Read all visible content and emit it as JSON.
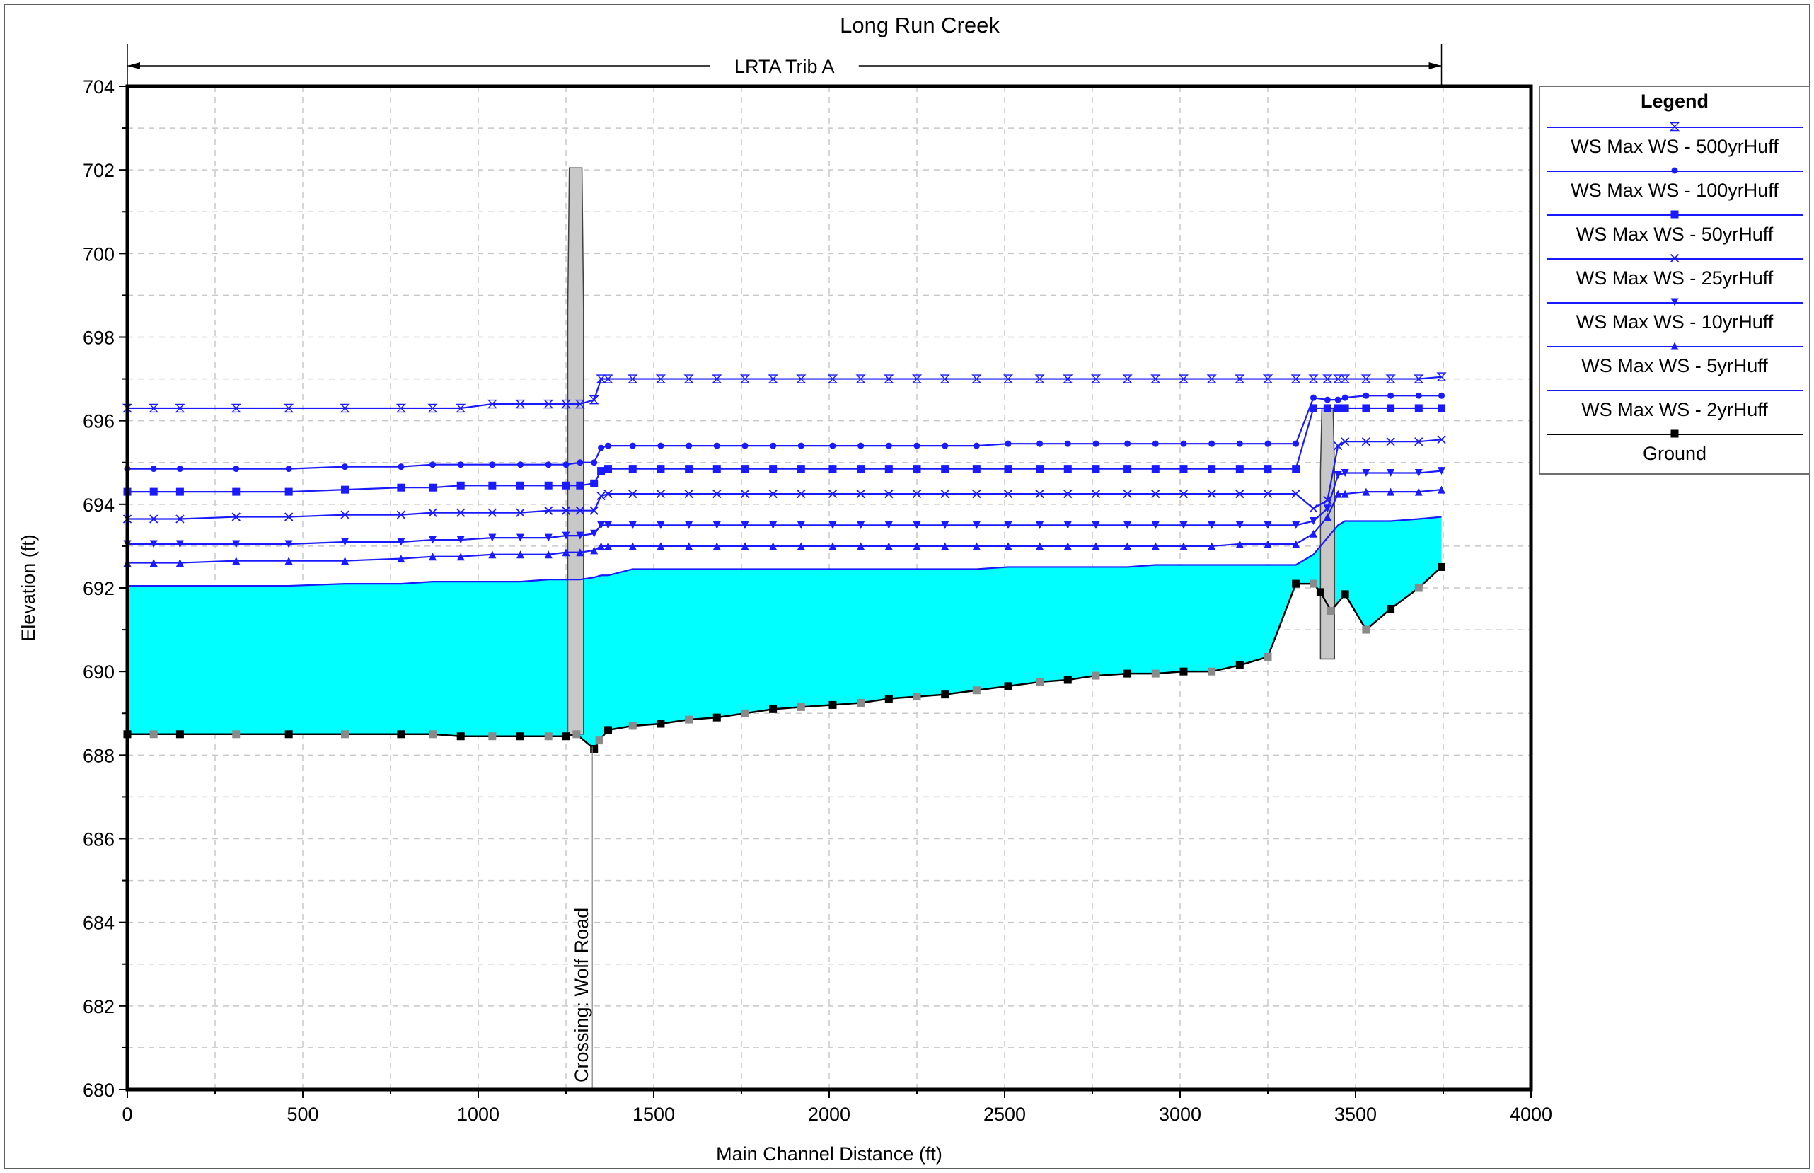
{
  "chart_data": {
    "type": "line",
    "title": "Long Run Creek",
    "reach_label": "LRTA Trib A",
    "xlabel": "Main Channel Distance (ft)",
    "ylabel": "Elevation (ft)",
    "xlim": [
      0,
      4000
    ],
    "ylim": [
      680,
      704
    ],
    "x_ticks": [
      "0",
      "500",
      "1000",
      "1500",
      "2000",
      "2500",
      "3000",
      "3500",
      "4000"
    ],
    "y_ticks": [
      "680",
      "682",
      "684",
      "686",
      "688",
      "690",
      "692",
      "694",
      "696",
      "698",
      "700",
      "702",
      "704"
    ],
    "grid": true,
    "legend_position": "right",
    "legend_title": "Legend",
    "annotation": "Crossing: Wolf Road",
    "annotation_x": 1325,
    "reach_start_x": 0,
    "reach_end_x": 3745,
    "colors": {
      "ws": "#1a1aff",
      "ground": "#000000",
      "fill": "#00ffff",
      "structure": "#c8c8c8"
    },
    "series": [
      {
        "name": "WS Max WS - 500yrHuff",
        "marker": "hourglass",
        "x": [
          0,
          75,
          150,
          310,
          460,
          620,
          780,
          870,
          950,
          1040,
          1120,
          1200,
          1250,
          1290,
          1330,
          1350,
          1370,
          1440,
          1520,
          1600,
          1680,
          1760,
          1840,
          1920,
          2010,
          2090,
          2170,
          2250,
          2330,
          2420,
          2510,
          2600,
          2680,
          2760,
          2850,
          2930,
          3010,
          3090,
          3170,
          3250,
          3330,
          3380,
          3420,
          3450,
          3470,
          3530,
          3600,
          3680,
          3745
        ],
        "values": [
          696.3,
          696.3,
          696.3,
          696.3,
          696.3,
          696.3,
          696.3,
          696.3,
          696.3,
          696.4,
          696.4,
          696.4,
          696.4,
          696.4,
          696.5,
          697.0,
          697.0,
          697.0,
          697.0,
          697.0,
          697.0,
          697.0,
          697.0,
          697.0,
          697.0,
          697.0,
          697.0,
          697.0,
          697.0,
          697.0,
          697.0,
          697.0,
          697.0,
          697.0,
          697.0,
          697.0,
          697.0,
          697.0,
          697.0,
          697.0,
          697.0,
          697.0,
          697.0,
          697.0,
          697.0,
          697.0,
          697.0,
          697.0,
          697.05
        ]
      },
      {
        "name": "WS Max WS - 100yrHuff",
        "marker": "circle",
        "x": [
          0,
          75,
          150,
          310,
          460,
          620,
          780,
          870,
          950,
          1040,
          1120,
          1200,
          1250,
          1290,
          1330,
          1350,
          1370,
          1440,
          1520,
          1600,
          1680,
          1760,
          1840,
          1920,
          2010,
          2090,
          2170,
          2250,
          2330,
          2420,
          2510,
          2600,
          2680,
          2760,
          2850,
          2930,
          3010,
          3090,
          3170,
          3250,
          3330,
          3380,
          3420,
          3450,
          3470,
          3530,
          3600,
          3680,
          3745
        ],
        "values": [
          694.85,
          694.85,
          694.85,
          694.85,
          694.85,
          694.9,
          694.9,
          694.95,
          694.95,
          694.95,
          694.95,
          694.95,
          694.95,
          695.0,
          695.0,
          695.35,
          695.4,
          695.4,
          695.4,
          695.4,
          695.4,
          695.4,
          695.4,
          695.4,
          695.4,
          695.4,
          695.4,
          695.4,
          695.4,
          695.4,
          695.45,
          695.45,
          695.45,
          695.45,
          695.45,
          695.45,
          695.45,
          695.45,
          695.45,
          695.45,
          695.45,
          696.55,
          696.5,
          696.5,
          696.55,
          696.6,
          696.6,
          696.6,
          696.6
        ]
      },
      {
        "name": "WS Max WS - 50yrHuff",
        "marker": "square",
        "x": [
          0,
          75,
          150,
          310,
          460,
          620,
          780,
          870,
          950,
          1040,
          1120,
          1200,
          1250,
          1290,
          1330,
          1350,
          1370,
          1440,
          1520,
          1600,
          1680,
          1760,
          1840,
          1920,
          2010,
          2090,
          2170,
          2250,
          2330,
          2420,
          2510,
          2600,
          2680,
          2760,
          2850,
          2930,
          3010,
          3090,
          3170,
          3250,
          3330,
          3380,
          3420,
          3450,
          3470,
          3530,
          3600,
          3680,
          3745
        ],
        "values": [
          694.3,
          694.3,
          694.3,
          694.3,
          694.3,
          694.35,
          694.4,
          694.4,
          694.45,
          694.45,
          694.45,
          694.45,
          694.45,
          694.45,
          694.5,
          694.8,
          694.85,
          694.85,
          694.85,
          694.85,
          694.85,
          694.85,
          694.85,
          694.85,
          694.85,
          694.85,
          694.85,
          694.85,
          694.85,
          694.85,
          694.85,
          694.85,
          694.85,
          694.85,
          694.85,
          694.85,
          694.85,
          694.85,
          694.85,
          694.85,
          694.85,
          696.3,
          696.3,
          696.3,
          696.3,
          696.3,
          696.3,
          696.3,
          696.3
        ]
      },
      {
        "name": "WS Max WS - 25yrHuff",
        "marker": "x",
        "x": [
          0,
          75,
          150,
          310,
          460,
          620,
          780,
          870,
          950,
          1040,
          1120,
          1200,
          1250,
          1290,
          1330,
          1350,
          1370,
          1440,
          1520,
          1600,
          1680,
          1760,
          1840,
          1920,
          2010,
          2090,
          2170,
          2250,
          2330,
          2420,
          2510,
          2600,
          2680,
          2760,
          2850,
          2930,
          3010,
          3090,
          3170,
          3250,
          3330,
          3380,
          3420,
          3450,
          3470,
          3530,
          3600,
          3680,
          3745
        ],
        "values": [
          693.65,
          693.65,
          693.65,
          693.7,
          693.7,
          693.75,
          693.75,
          693.8,
          693.8,
          693.8,
          693.8,
          693.85,
          693.85,
          693.85,
          693.85,
          694.2,
          694.25,
          694.25,
          694.25,
          694.25,
          694.25,
          694.25,
          694.25,
          694.25,
          694.25,
          694.25,
          694.25,
          694.25,
          694.25,
          694.25,
          694.25,
          694.25,
          694.25,
          694.25,
          694.25,
          694.25,
          694.25,
          694.25,
          694.25,
          694.25,
          694.25,
          693.9,
          694.1,
          695.4,
          695.5,
          695.5,
          695.5,
          695.5,
          695.55
        ]
      },
      {
        "name": "WS Max WS - 10yrHuff",
        "marker": "triangle-down",
        "x": [
          0,
          75,
          150,
          310,
          460,
          620,
          780,
          870,
          950,
          1040,
          1120,
          1200,
          1250,
          1290,
          1330,
          1350,
          1370,
          1440,
          1520,
          1600,
          1680,
          1760,
          1840,
          1920,
          2010,
          2090,
          2170,
          2250,
          2330,
          2420,
          2510,
          2600,
          2680,
          2760,
          2850,
          2930,
          3010,
          3090,
          3170,
          3250,
          3330,
          3380,
          3420,
          3450,
          3470,
          3530,
          3600,
          3680,
          3745
        ],
        "values": [
          693.05,
          693.05,
          693.05,
          693.05,
          693.05,
          693.1,
          693.1,
          693.15,
          693.15,
          693.2,
          693.2,
          693.2,
          693.25,
          693.25,
          693.3,
          693.5,
          693.5,
          693.5,
          693.5,
          693.5,
          693.5,
          693.5,
          693.5,
          693.5,
          693.5,
          693.5,
          693.5,
          693.5,
          693.5,
          693.5,
          693.5,
          693.5,
          693.5,
          693.5,
          693.5,
          693.5,
          693.5,
          693.5,
          693.5,
          693.5,
          693.5,
          693.6,
          693.9,
          694.7,
          694.75,
          694.75,
          694.75,
          694.75,
          694.8
        ]
      },
      {
        "name": "WS Max WS - 5yrHuff",
        "marker": "triangle-up",
        "x": [
          0,
          75,
          150,
          310,
          460,
          620,
          780,
          870,
          950,
          1040,
          1120,
          1200,
          1250,
          1290,
          1330,
          1350,
          1370,
          1440,
          1520,
          1600,
          1680,
          1760,
          1840,
          1920,
          2010,
          2090,
          2170,
          2250,
          2330,
          2420,
          2510,
          2600,
          2680,
          2760,
          2850,
          2930,
          3010,
          3090,
          3170,
          3250,
          3330,
          3380,
          3420,
          3450,
          3470,
          3530,
          3600,
          3680,
          3745
        ],
        "values": [
          692.6,
          692.6,
          692.6,
          692.65,
          692.65,
          692.65,
          692.7,
          692.75,
          692.75,
          692.8,
          692.8,
          692.8,
          692.85,
          692.85,
          692.9,
          693.0,
          693.0,
          693.0,
          693.0,
          693.0,
          693.0,
          693.0,
          693.0,
          693.0,
          693.0,
          693.0,
          693.0,
          693.0,
          693.0,
          693.0,
          693.0,
          693.0,
          693.0,
          693.0,
          693.0,
          693.0,
          693.0,
          693.0,
          693.05,
          693.05,
          693.05,
          693.3,
          693.7,
          694.25,
          694.25,
          694.3,
          694.3,
          694.3,
          694.35
        ]
      },
      {
        "name": "WS Max WS - 2yrHuff",
        "marker": "none",
        "x": [
          0,
          75,
          150,
          310,
          460,
          620,
          780,
          870,
          950,
          1040,
          1120,
          1200,
          1250,
          1290,
          1330,
          1350,
          1370,
          1440,
          1520,
          1600,
          1680,
          1760,
          1840,
          1920,
          2010,
          2090,
          2170,
          2250,
          2330,
          2420,
          2510,
          2600,
          2680,
          2760,
          2850,
          2930,
          3010,
          3090,
          3170,
          3250,
          3330,
          3380,
          3420,
          3450,
          3470,
          3530,
          3600,
          3680,
          3745
        ],
        "values": [
          692.05,
          692.05,
          692.05,
          692.05,
          692.05,
          692.1,
          692.1,
          692.15,
          692.15,
          692.15,
          692.15,
          692.2,
          692.2,
          692.2,
          692.25,
          692.3,
          692.3,
          692.45,
          692.45,
          692.45,
          692.45,
          692.45,
          692.45,
          692.45,
          692.45,
          692.45,
          692.45,
          692.45,
          692.45,
          692.45,
          692.5,
          692.5,
          692.5,
          692.5,
          692.5,
          692.55,
          692.55,
          692.55,
          692.55,
          692.55,
          692.55,
          692.8,
          693.2,
          693.5,
          693.6,
          693.6,
          693.6,
          693.65,
          693.7
        ]
      }
    ],
    "ground": {
      "name": "Ground",
      "x": [
        0,
        75,
        150,
        310,
        460,
        620,
        780,
        870,
        950,
        1040,
        1120,
        1200,
        1250,
        1280,
        1330,
        1345,
        1370,
        1440,
        1520,
        1600,
        1680,
        1760,
        1840,
        1920,
        2010,
        2090,
        2170,
        2250,
        2330,
        2420,
        2510,
        2600,
        2680,
        2760,
        2850,
        2930,
        3010,
        3090,
        3170,
        3250,
        3330,
        3380,
        3400,
        3430,
        3470,
        3530,
        3600,
        3680,
        3745
      ],
      "values": [
        688.5,
        688.5,
        688.5,
        688.5,
        688.5,
        688.5,
        688.5,
        688.5,
        688.45,
        688.45,
        688.45,
        688.45,
        688.45,
        688.5,
        688.15,
        688.35,
        688.6,
        688.7,
        688.75,
        688.85,
        688.9,
        689.0,
        689.1,
        689.15,
        689.2,
        689.25,
        689.35,
        689.4,
        689.45,
        689.55,
        689.65,
        689.75,
        689.8,
        689.9,
        689.95,
        689.95,
        690.0,
        690.0,
        690.15,
        690.35,
        692.1,
        692.1,
        691.9,
        691.45,
        691.85,
        691.0,
        691.5,
        692.0,
        692.5
      ]
    },
    "structures": [
      {
        "name": "Wolf Road crossing",
        "x_start": 1255,
        "x_end": 1300,
        "top": 702.05,
        "bottom": 688.5
      },
      {
        "name": "downstream structure",
        "x_start": 3400,
        "x_end": 3440,
        "top": 696.3,
        "bottom": 690.3
      }
    ]
  }
}
